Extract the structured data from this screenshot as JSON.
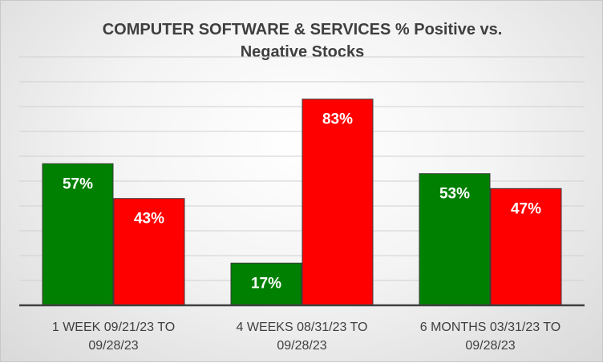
{
  "chart_data": {
    "type": "bar",
    "title_lines": [
      "COMPUTER SOFTWARE & SERVICES % Positive vs.",
      "Negative Stocks"
    ],
    "categories": [
      {
        "line1": "1 WEEK 09/21/23 TO",
        "line2": "09/28/23"
      },
      {
        "line1": "4 WEEKS 08/31/23 TO",
        "line2": "09/28/23"
      },
      {
        "line1": "6 MONTHS 03/31/23 TO",
        "line2": "09/28/23"
      }
    ],
    "series": [
      {
        "name": "Positive",
        "color": "#008000",
        "values": [
          57,
          17,
          53
        ],
        "labels": [
          "57%",
          "17%",
          "53%"
        ]
      },
      {
        "name": "Negative",
        "color": "#ff0000",
        "values": [
          43,
          83,
          47
        ],
        "labels": [
          "43%",
          "83%",
          "47%"
        ]
      }
    ],
    "ylim": [
      0,
      100
    ],
    "grid": true,
    "legend": "none",
    "xlabel": "",
    "ylabel": ""
  }
}
